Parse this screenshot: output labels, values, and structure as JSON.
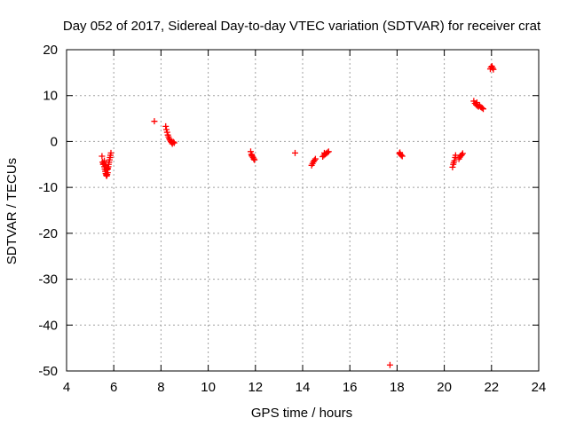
{
  "chart_data": {
    "type": "scatter",
    "title": "Day 052 of 2017, Sidereal Day-to-day VTEC variation (SDTVAR) for receiver crat",
    "xlabel": "GPS time / hours",
    "ylabel": "SDTVAR / TECUs",
    "xlim": [
      4,
      24
    ],
    "ylim": [
      -50,
      20
    ],
    "xticks": [
      4,
      6,
      8,
      10,
      12,
      14,
      16,
      18,
      20,
      22,
      24
    ],
    "yticks": [
      -50,
      -40,
      -30,
      -20,
      -10,
      0,
      10,
      20
    ],
    "grid": true,
    "marker": "+",
    "series": [
      {
        "name": "SDTVAR",
        "color": "#ff0000",
        "points": [
          [
            5.5,
            -3.2
          ],
          [
            5.53,
            -4.5
          ],
          [
            5.55,
            -5.0
          ],
          [
            5.57,
            -4.8
          ],
          [
            5.6,
            -5.5
          ],
          [
            5.62,
            -6.0
          ],
          [
            5.64,
            -6.5
          ],
          [
            5.66,
            -7.0
          ],
          [
            5.68,
            -7.3
          ],
          [
            5.7,
            -7.5
          ],
          [
            5.72,
            -7.2
          ],
          [
            5.74,
            -6.8
          ],
          [
            5.75,
            -6.0
          ],
          [
            5.77,
            -5.5
          ],
          [
            5.78,
            -5.0
          ],
          [
            5.8,
            -4.5
          ],
          [
            5.82,
            -4.0
          ],
          [
            5.84,
            -3.5
          ],
          [
            5.86,
            -3.0
          ],
          [
            5.88,
            -2.5
          ],
          [
            5.6,
            -4.2
          ],
          [
            5.65,
            -5.2
          ],
          [
            5.7,
            -6.2
          ],
          [
            5.73,
            -5.8
          ],
          [
            7.72,
            4.4
          ],
          [
            8.2,
            3.3
          ],
          [
            8.23,
            2.6
          ],
          [
            8.26,
            2.0
          ],
          [
            8.29,
            1.4
          ],
          [
            8.32,
            1.0
          ],
          [
            8.35,
            0.6
          ],
          [
            8.38,
            0.3
          ],
          [
            8.42,
            0.0
          ],
          [
            8.45,
            -0.2
          ],
          [
            8.48,
            -0.5
          ],
          [
            8.52,
            -0.1
          ],
          [
            8.56,
            -0.3
          ],
          [
            11.8,
            -2.2
          ],
          [
            11.83,
            -2.8
          ],
          [
            11.86,
            -3.2
          ],
          [
            11.9,
            -3.5
          ],
          [
            11.93,
            -3.8
          ],
          [
            11.96,
            -4.0
          ],
          [
            11.85,
            -3.0
          ],
          [
            13.68,
            -2.5
          ],
          [
            14.38,
            -5.2
          ],
          [
            14.42,
            -4.8
          ],
          [
            14.46,
            -4.4
          ],
          [
            14.5,
            -4.1
          ],
          [
            14.54,
            -3.8
          ],
          [
            14.85,
            -3.3
          ],
          [
            14.9,
            -3.0
          ],
          [
            14.95,
            -2.8
          ],
          [
            15.0,
            -2.6
          ],
          [
            15.05,
            -2.4
          ],
          [
            15.1,
            -2.2
          ],
          [
            14.92,
            -2.5
          ],
          [
            17.7,
            -48.7
          ],
          [
            18.1,
            -2.6
          ],
          [
            18.14,
            -2.8
          ],
          [
            18.18,
            -3.0
          ],
          [
            18.22,
            -3.2
          ],
          [
            18.12,
            -2.4
          ],
          [
            20.35,
            -5.6
          ],
          [
            20.38,
            -5.0
          ],
          [
            20.4,
            -4.6
          ],
          [
            20.43,
            -4.2
          ],
          [
            20.46,
            -3.5
          ],
          [
            20.48,
            -3.0
          ],
          [
            20.62,
            -3.8
          ],
          [
            20.66,
            -3.4
          ],
          [
            20.7,
            -3.1
          ],
          [
            20.74,
            -2.9
          ],
          [
            20.78,
            -2.6
          ],
          [
            21.25,
            8.8
          ],
          [
            21.3,
            8.3
          ],
          [
            21.35,
            8.0
          ],
          [
            21.4,
            7.8
          ],
          [
            21.45,
            7.6
          ],
          [
            21.5,
            7.8
          ],
          [
            21.55,
            7.5
          ],
          [
            21.6,
            7.3
          ],
          [
            21.65,
            7.1
          ],
          [
            21.38,
            8.5
          ],
          [
            21.95,
            15.8
          ],
          [
            21.98,
            16.2
          ],
          [
            22.02,
            16.4
          ],
          [
            22.05,
            16.0
          ],
          [
            22.08,
            15.7
          ]
        ]
      }
    ]
  }
}
